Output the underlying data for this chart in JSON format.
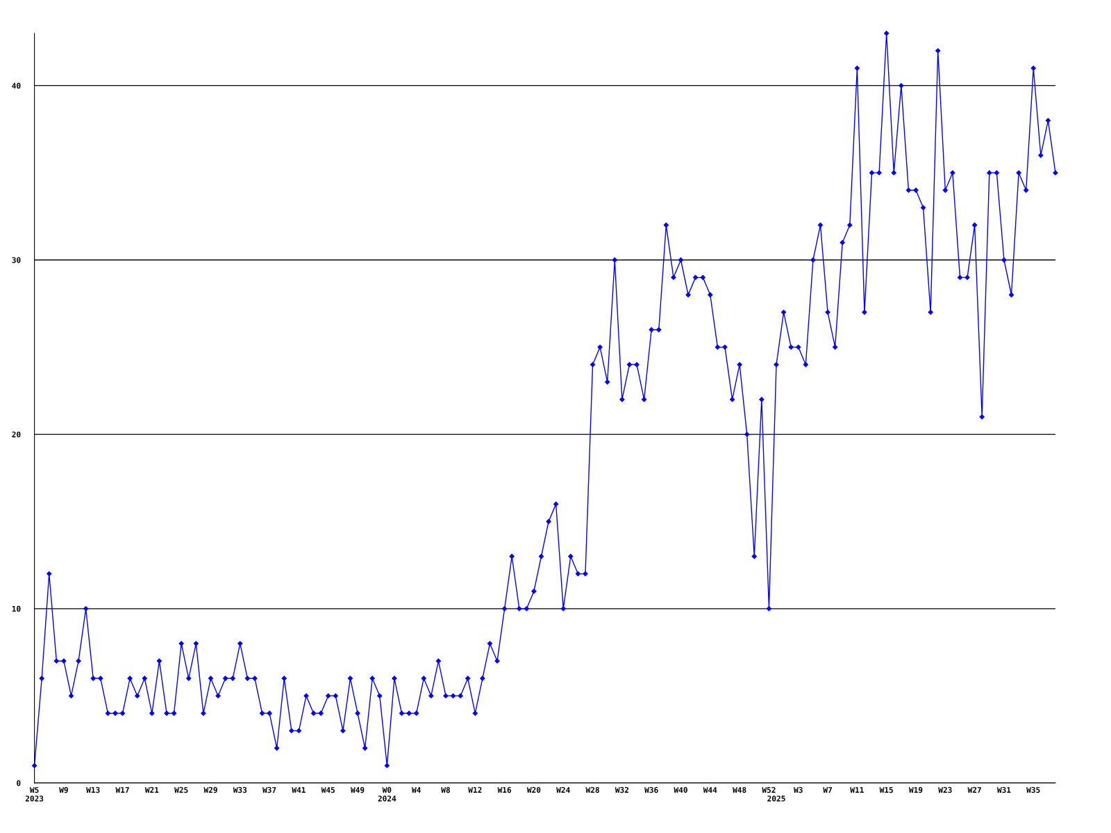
{
  "chart_data": {
    "type": "line",
    "categories": [
      "W5\n2023",
      null,
      null,
      null,
      "W9",
      null,
      null,
      null,
      "W13",
      null,
      null,
      null,
      "W17",
      null,
      null,
      null,
      "W21",
      null,
      null,
      null,
      "W25",
      null,
      null,
      null,
      "W29",
      null,
      null,
      null,
      "W33",
      null,
      null,
      null,
      "W37",
      null,
      null,
      null,
      "W41",
      null,
      null,
      null,
      "W45",
      null,
      null,
      null,
      "W49",
      null,
      null,
      null,
      "W0\n2024",
      null,
      null,
      null,
      "W4",
      null,
      null,
      null,
      "W8",
      null,
      null,
      null,
      "W12",
      null,
      null,
      null,
      "W16",
      null,
      null,
      null,
      "W20",
      null,
      null,
      null,
      "W24",
      null,
      null,
      null,
      "W28",
      null,
      null,
      null,
      "W32",
      null,
      null,
      null,
      "W36",
      null,
      null,
      null,
      "W40",
      null,
      null,
      null,
      "W44",
      null,
      null,
      null,
      "W48",
      null,
      null,
      null,
      "W52",
      "\n2025",
      null,
      null,
      "W3",
      null,
      null,
      null,
      "W7",
      null,
      null,
      null,
      "W11",
      null,
      null,
      null,
      "W15",
      null,
      null,
      null,
      "W19",
      null,
      null,
      null,
      "W23",
      null,
      null,
      null,
      "W27",
      null,
      null,
      null,
      "W31",
      null,
      null,
      null,
      "W35",
      null,
      null,
      null
    ],
    "series": [
      {
        "color": "#0000ff",
        "values": [
          1,
          6,
          12,
          7,
          7,
          5,
          7,
          10,
          6,
          6,
          4,
          4,
          4,
          6,
          5,
          6,
          4,
          7,
          4,
          4,
          8,
          6,
          8,
          4,
          6,
          5,
          6,
          6,
          8,
          6,
          6,
          4,
          4,
          2,
          6,
          3,
          3,
          5,
          4,
          4,
          5,
          5,
          3,
          6,
          4,
          2,
          6,
          5,
          1,
          6,
          4,
          4,
          4,
          6,
          5,
          7,
          5,
          5,
          5,
          6,
          4,
          6,
          8,
          7,
          10,
          13,
          10,
          10,
          11,
          13,
          15,
          16,
          10,
          13,
          12,
          12,
          24,
          25,
          23,
          30,
          22,
          24,
          24,
          22,
          26,
          26,
          32,
          29,
          30,
          28,
          29,
          29,
          28,
          25,
          25,
          22,
          24,
          20,
          13,
          22,
          10,
          24,
          27,
          25,
          25,
          24,
          30,
          32,
          27,
          25,
          31,
          32,
          41,
          27,
          35,
          35,
          43,
          35,
          40,
          34,
          34,
          33,
          27,
          42,
          34,
          35,
          29,
          29,
          32,
          21,
          35,
          35,
          30,
          28,
          35,
          34,
          41,
          36,
          38,
          35
        ]
      }
    ],
    "ylim": [
      0,
      43
    ],
    "yticks": [
      0,
      10,
      20,
      30,
      40
    ],
    "grid": "y",
    "marker": "diamond",
    "line_style": "solid"
  }
}
